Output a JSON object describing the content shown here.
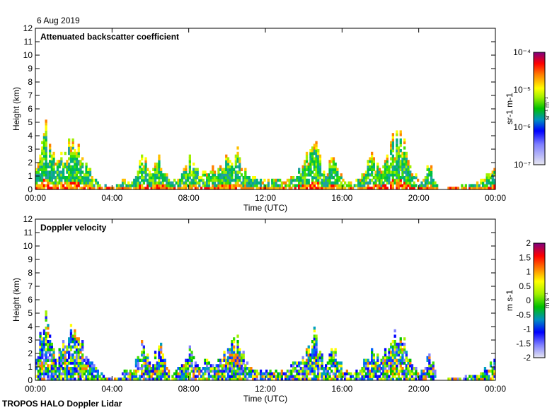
{
  "date_label": "6 Aug 2019",
  "footer": "TROPOS HALO Doppler Lidar",
  "chart_data": [
    {
      "type": "heatmap",
      "title": "Attenuated backscatter coefficient",
      "xlabel": "Time (UTC)",
      "ylabel": "Height (km)",
      "xlim": [
        0,
        24
      ],
      "ylim": [
        0,
        12
      ],
      "xticks": [
        "00:00",
        "04:00",
        "08:00",
        "12:00",
        "16:00",
        "20:00",
        "00:00"
      ],
      "yticks": [
        "0",
        "1",
        "2",
        "3",
        "4",
        "5",
        "6",
        "7",
        "8",
        "9",
        "10",
        "11",
        "12"
      ],
      "colorbar": {
        "label": "sr-1 m-1",
        "unit_html": "sr⁻¹ m⁻¹",
        "ticks": [
          "10⁻⁴",
          "10⁻⁵",
          "10⁻⁶",
          "10⁻⁷"
        ],
        "range": [
          1e-07,
          0.0001
        ],
        "scale": "log"
      },
      "signal_top_km": {
        "hours": [
          0,
          0.5,
          1,
          1.5,
          2,
          2.5,
          3,
          3.5,
          4,
          4.5,
          5,
          5.5,
          6,
          6.5,
          7,
          7.5,
          8,
          8.5,
          9,
          9.5,
          10,
          10.5,
          11,
          11.5,
          12,
          12.5,
          13,
          13.5,
          14,
          14.5,
          15,
          15.5,
          16,
          16.5,
          17,
          17.5,
          18,
          18.5,
          19,
          19.5,
          20,
          20.5,
          21,
          21.5,
          22,
          22.5,
          23,
          23.5,
          24
        ],
        "top": [
          2.5,
          4.8,
          2,
          3,
          4.3,
          2.5,
          1,
          0.3,
          0,
          0.6,
          0.8,
          3,
          1.5,
          2.5,
          0.5,
          1,
          2.3,
          1.2,
          1.5,
          1.5,
          2.5,
          3,
          1.3,
          0.8,
          0.6,
          0.8,
          0.6,
          1.5,
          2,
          4,
          1.2,
          2.5,
          0.8,
          0.3,
          1.2,
          2.5,
          1.5,
          3.5,
          4.7,
          2,
          0.3,
          2,
          0,
          0,
          0.2,
          0.3,
          0.4,
          1,
          1.5
        ]
      }
    },
    {
      "type": "heatmap",
      "title": "Doppler velocity",
      "xlabel": "Time (UTC)",
      "ylabel": "Height (km)",
      "xlim": [
        0,
        24
      ],
      "ylim": [
        0,
        12
      ],
      "xticks": [
        "00:00",
        "04:00",
        "08:00",
        "12:00",
        "16:00",
        "20:00",
        "00:00"
      ],
      "yticks": [
        "0",
        "1",
        "2",
        "3",
        "4",
        "5",
        "6",
        "7",
        "8",
        "9",
        "10",
        "11",
        "12"
      ],
      "colorbar": {
        "label": "m s-1",
        "unit_html": "m s⁻¹",
        "ticks": [
          "2",
          "1.5",
          "1",
          "0.5",
          "0",
          "-0.5",
          "-1",
          "-1.5",
          "-2"
        ],
        "range": [
          -2,
          2
        ]
      }
    }
  ]
}
